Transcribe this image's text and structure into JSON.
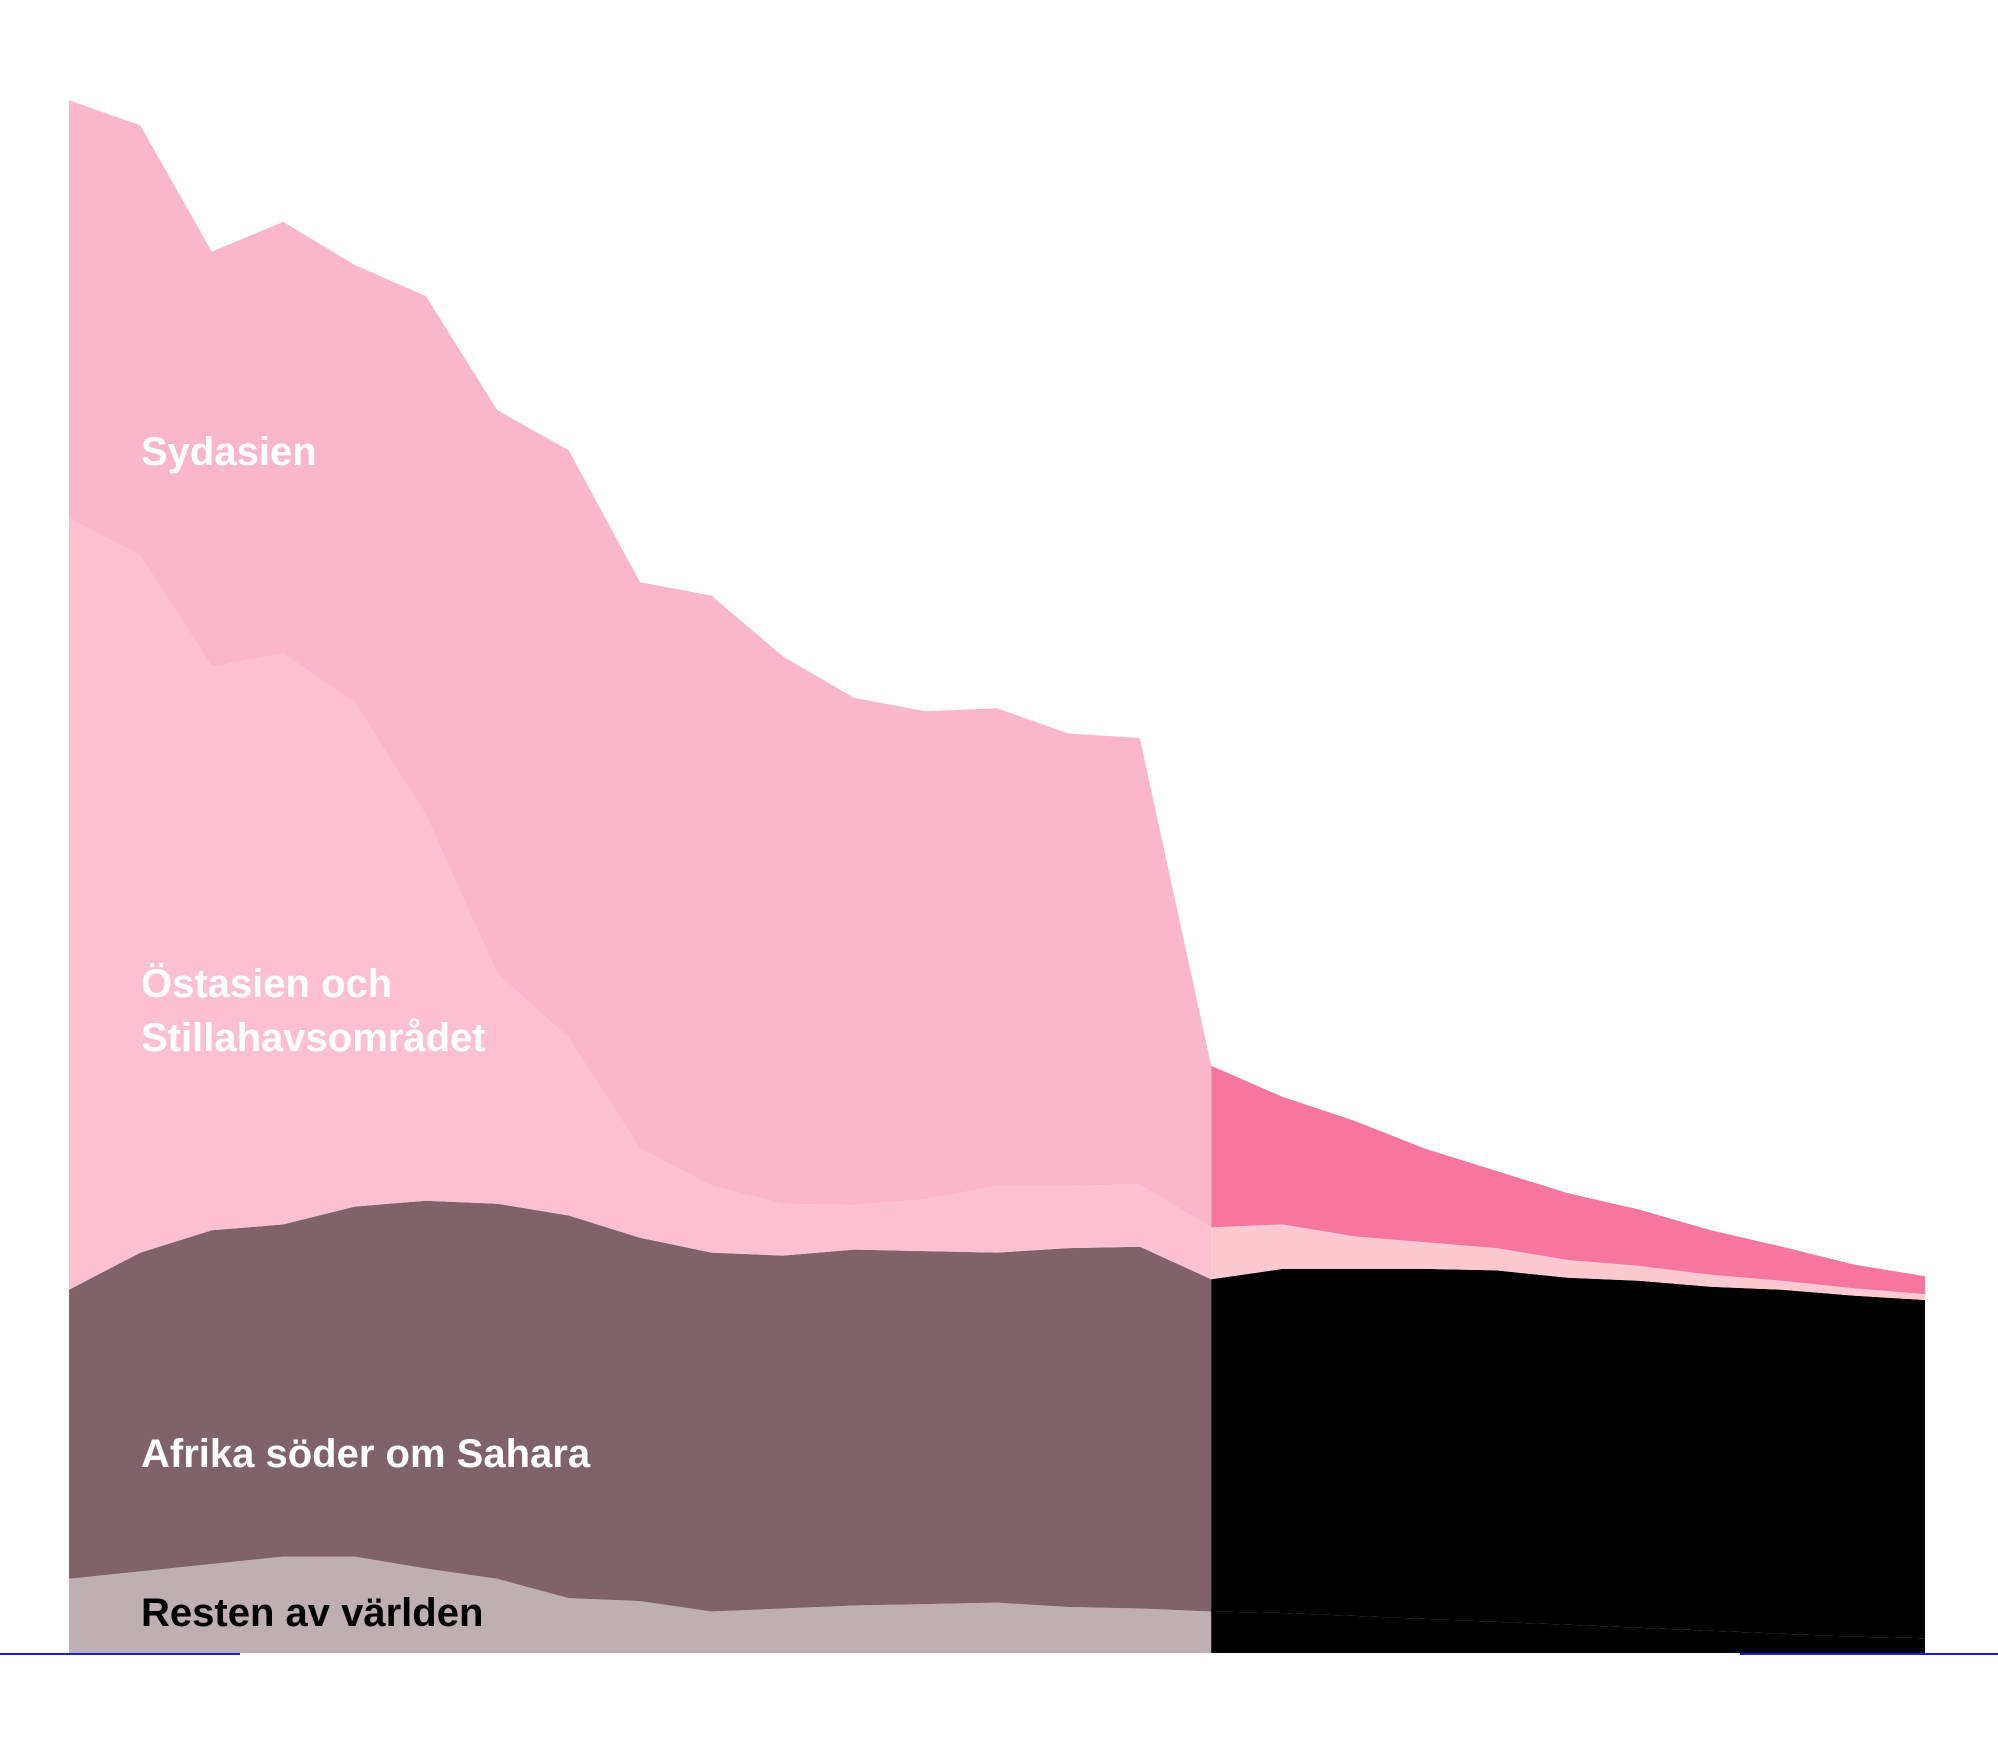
{
  "chart_data": {
    "type": "area",
    "stacked": true,
    "title": "",
    "xlabel": "",
    "ylabel": "",
    "ylim": [
      0,
      1000
    ],
    "x_index_range": [
      0,
      26
    ],
    "observed_until_index": 16,
    "series": [
      {
        "name": "Resten av världen",
        "label": "Resten av världen",
        "color_observed": "#bdafb2",
        "color_projected": "#000000",
        "label_color": "#000000",
        "values": [
          50,
          55,
          60,
          65,
          65,
          57,
          50,
          37,
          35,
          28,
          30,
          32,
          33,
          34,
          31,
          30,
          28,
          27,
          25,
          23,
          21,
          19,
          17,
          15,
          13,
          11,
          10
        ]
      },
      {
        "name": "Afrika söder om Sahara",
        "label": "Afrika söder om Sahara",
        "color_observed": "#7f6368",
        "color_projected": "#000000",
        "label_color": "#ffffff",
        "values": [
          195,
          215,
          225,
          224,
          236,
          248,
          253,
          258,
          245,
          242,
          238,
          240,
          238,
          236,
          242,
          244,
          224,
          232,
          234,
          236,
          237,
          234,
          234,
          232,
          232,
          230,
          228
        ]
      },
      {
        "name": "Östasien och Stillahavsområdet",
        "label": "Östasien och\nStillahavsområdet",
        "color_observed": "#fdc0d1",
        "color_projected": "#fdc9d1",
        "label_color": "#ffffff",
        "values": [
          520,
          470,
          380,
          385,
          340,
          260,
          155,
          120,
          60,
          45,
          35,
          30,
          35,
          45,
          42,
          42,
          35,
          30,
          22,
          18,
          15,
          12,
          10,
          8,
          6,
          5,
          4
        ]
      },
      {
        "name": "Sydasien",
        "label": "Sydasien",
        "color_observed": "#fab6cb",
        "color_projected": "#f7769f",
        "label_color": "#ffffff",
        "values": [
          282,
          290,
          280,
          291,
          295,
          350,
          380,
          396,
          382,
          398,
          369,
          342,
          329,
          322,
          305,
          301,
          109,
          86,
          78,
          63,
          52,
          45,
          38,
          30,
          23,
          16,
          12
        ]
      }
    ],
    "reference_line_color": "#1a1adb"
  }
}
